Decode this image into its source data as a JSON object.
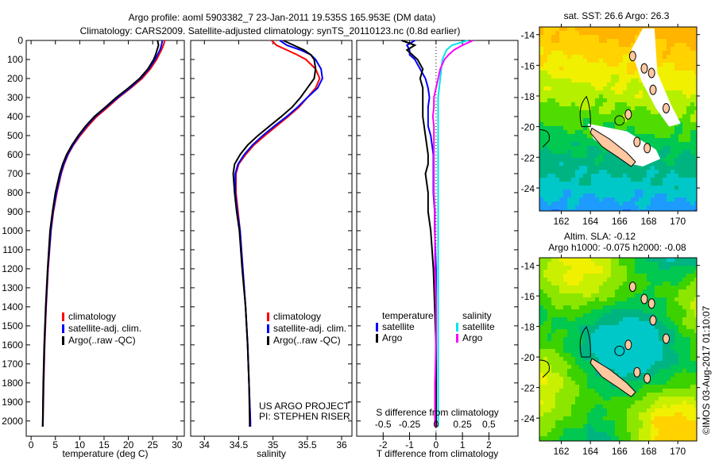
{
  "title_line1": "Argo profile: aoml 5903382_7 23-Jan-2011 19.535S 165.953E (DM data)",
  "title_line2": "Climatology: CARS2009. Satellite-adjusted climatology: synTS_20110123.nc (0.8d earlier)",
  "credit": "US ARGO PROJECT",
  "pi": "PI: STEPHEN RISER",
  "stamp": "©IMOS 03-Aug-2017 01:10:07",
  "chart_data": [
    {
      "type": "line",
      "id": "temperature",
      "xlabel": "temperature (deg C)",
      "ylabel": "depth",
      "xlim": [
        -1,
        31.5
      ],
      "ylim": [
        2080,
        0
      ],
      "xticks": [
        0,
        5,
        10,
        15,
        20,
        25,
        30
      ],
      "yticks": [
        0,
        100,
        200,
        300,
        400,
        500,
        600,
        700,
        800,
        900,
        1000,
        1100,
        1200,
        1300,
        1400,
        1500,
        1600,
        1700,
        1800,
        1900,
        2000
      ],
      "legend": [
        "climatology",
        "satellite-adj. clim.",
        "Argo(..raw -QC)"
      ],
      "depth": [
        0,
        25,
        50,
        75,
        100,
        150,
        200,
        250,
        300,
        350,
        400,
        450,
        500,
        550,
        600,
        650,
        700,
        800,
        900,
        1000,
        1200,
        1400,
        1600,
        1800,
        2000,
        2030
      ],
      "series": [
        {
          "name": "climatology",
          "color": "#ff0000",
          "values": [
            27.5,
            27.2,
            26.8,
            26.3,
            25.8,
            24.5,
            22.8,
            20.5,
            18.0,
            15.8,
            13.5,
            11.7,
            10.1,
            8.7,
            7.6,
            6.8,
            6.2,
            5.3,
            4.6,
            4.1,
            3.5,
            3.1,
            2.8,
            2.6,
            2.45,
            2.4
          ]
        },
        {
          "name": "satellite-adj. clim.",
          "color": "#0000ff",
          "values": [
            27.0,
            26.8,
            26.5,
            26.0,
            25.5,
            24.2,
            22.5,
            20.3,
            17.8,
            15.5,
            13.2,
            11.4,
            9.9,
            8.6,
            7.5,
            6.7,
            6.1,
            5.2,
            4.5,
            4.05,
            3.45,
            3.05,
            2.75,
            2.55,
            2.42,
            2.4
          ]
        },
        {
          "name": "Argo(..raw -QC)",
          "color": "#000000",
          "values": [
            26.0,
            26.2,
            25.9,
            25.6,
            25.2,
            24.0,
            22.3,
            20.0,
            17.5,
            15.3,
            13.0,
            11.2,
            9.7,
            8.4,
            7.3,
            6.5,
            5.9,
            5.0,
            4.4,
            3.9,
            3.4,
            3.0,
            2.7,
            2.5,
            2.4,
            2.38
          ]
        }
      ]
    },
    {
      "type": "line",
      "id": "salinity",
      "xlabel": "salinity",
      "xlim": [
        33.8,
        36.15
      ],
      "ylim": [
        2080,
        0
      ],
      "xticks": [
        34,
        34.5,
        35,
        35.5,
        36
      ],
      "legend": [
        "climatology",
        "satellite-adj. clim.",
        "Argo(..raw -QC)"
      ],
      "depth": [
        0,
        25,
        50,
        75,
        100,
        150,
        200,
        250,
        300,
        350,
        400,
        450,
        500,
        550,
        600,
        650,
        700,
        800,
        900,
        1000,
        1200,
        1400,
        1600,
        1800,
        2000,
        2030
      ],
      "series": [
        {
          "name": "climatology",
          "color": "#ff0000",
          "values": [
            34.98,
            35.05,
            35.2,
            35.35,
            35.48,
            35.62,
            35.68,
            35.62,
            35.5,
            35.38,
            35.22,
            35.05,
            34.88,
            34.72,
            34.6,
            34.5,
            34.46,
            34.46,
            34.49,
            34.52,
            34.56,
            34.6,
            34.63,
            34.65,
            34.67,
            34.67
          ]
        },
        {
          "name": "satellite-adj. clim.",
          "color": "#0000ff",
          "values": [
            35.1,
            35.2,
            35.4,
            35.55,
            35.62,
            35.7,
            35.72,
            35.65,
            35.5,
            35.36,
            35.2,
            35.02,
            34.85,
            34.7,
            34.58,
            34.49,
            34.45,
            34.45,
            34.48,
            34.52,
            34.56,
            34.6,
            34.63,
            34.65,
            34.67,
            34.67
          ]
        },
        {
          "name": "Argo(..raw -QC)",
          "color": "#000000",
          "values": [
            35.15,
            35.3,
            35.45,
            35.55,
            35.6,
            35.62,
            35.6,
            35.5,
            35.4,
            35.28,
            35.12,
            34.95,
            34.78,
            34.63,
            34.52,
            34.44,
            34.42,
            34.44,
            34.47,
            34.51,
            34.55,
            34.6,
            34.63,
            34.65,
            34.66,
            34.66
          ]
        }
      ]
    },
    {
      "type": "line",
      "id": "difference",
      "xlabel": "T difference from climatology",
      "xlabel2": "S difference from climatology",
      "xlim": [
        -3,
        3.1
      ],
      "xticks": [
        -2,
        -1,
        0,
        1,
        2
      ],
      "xticks2": [
        -0.5,
        -0.25,
        0,
        0.25,
        0.5
      ],
      "xticks2_labels": [
        "-0.5",
        "-0.25",
        "0",
        "0.25",
        "0.5"
      ],
      "ylim": [
        2080,
        0
      ],
      "legend_headers": [
        "temperature",
        "salinity"
      ],
      "legend": [
        "satellite",
        "Argo",
        "satellite",
        "Argo"
      ],
      "depth": [
        0,
        25,
        50,
        75,
        100,
        150,
        200,
        250,
        300,
        350,
        400,
        450,
        500,
        550,
        600,
        650,
        700,
        800,
        900,
        1000,
        1200,
        1400,
        1600,
        1800,
        2000,
        2030
      ],
      "series": [
        {
          "name": "T satellite",
          "axis": "T",
          "color": "#0000ff",
          "values": [
            -0.8,
            -1.1,
            -1.0,
            -1.0,
            -0.8,
            -0.6,
            -0.4,
            -0.3,
            -0.25,
            -0.3,
            -0.3,
            -0.3,
            -0.2,
            -0.15,
            -0.1,
            -0.1,
            -0.1,
            -0.1,
            -0.05,
            -0.05,
            0,
            0,
            0,
            0,
            0,
            0
          ]
        },
        {
          "name": "T Argo",
          "axis": "T",
          "color": "#000000",
          "values": [
            -1.3,
            -0.8,
            -1.1,
            -0.9,
            -0.7,
            -0.5,
            -0.6,
            -0.5,
            -0.5,
            -0.5,
            -0.5,
            -0.45,
            -0.4,
            -0.35,
            -0.3,
            -0.3,
            -0.4,
            -0.3,
            -0.3,
            -0.2,
            -0.1,
            -0.05,
            0,
            0,
            0,
            0
          ]
        },
        {
          "name": "S satellite",
          "axis": "S",
          "color": "#00e5ee",
          "values": [
            0.3,
            0.15,
            0.1,
            0.08,
            0.06,
            0.05,
            0.04,
            0.03,
            0.02,
            0.02,
            0.02,
            0.02,
            0.02,
            0.02,
            0.02,
            0.02,
            0.02,
            0.02,
            0.02,
            0.02,
            0.02,
            0.02,
            0.02,
            0.02,
            0.02,
            0.02
          ]
        },
        {
          "name": "S Argo",
          "axis": "S",
          "color": "#ff00ff",
          "values": [
            0.35,
            0.25,
            0.17,
            0.12,
            0.08,
            0.04,
            0.02,
            0,
            -0.02,
            -0.02,
            -0.03,
            -0.02,
            -0.02,
            -0.02,
            -0.02,
            -0.02,
            -0.02,
            -0.02,
            -0.01,
            -0.01,
            -0.01,
            0,
            0,
            -0.01,
            -0.01,
            -0.01
          ]
        }
      ]
    },
    {
      "type": "heatmap",
      "id": "sst-map",
      "title": "sat. SST: 26.6 Argo: 26.3",
      "xlim": [
        160.5,
        171.3
      ],
      "ylim": [
        -25.5,
        -13.5
      ],
      "xticks": [
        162,
        164,
        166,
        168,
        170
      ],
      "yticks": [
        -14,
        -16,
        -18,
        -20,
        -22,
        -24
      ],
      "profile_location": [
        165.953,
        -19.535
      ]
    },
    {
      "type": "heatmap",
      "id": "sla-map",
      "title": "Altim. SLA: -0.12",
      "subtitle": "Argo h1000: -0.075 h2000: -0.08",
      "xlim": [
        160.5,
        171.3
      ],
      "ylim": [
        -25.5,
        -13.5
      ],
      "xticks": [
        162,
        164,
        166,
        168,
        170
      ],
      "yticks": [
        -14,
        -16,
        -18,
        -20,
        -22,
        -24
      ],
      "profile_location": [
        165.953,
        -19.535
      ]
    }
  ]
}
